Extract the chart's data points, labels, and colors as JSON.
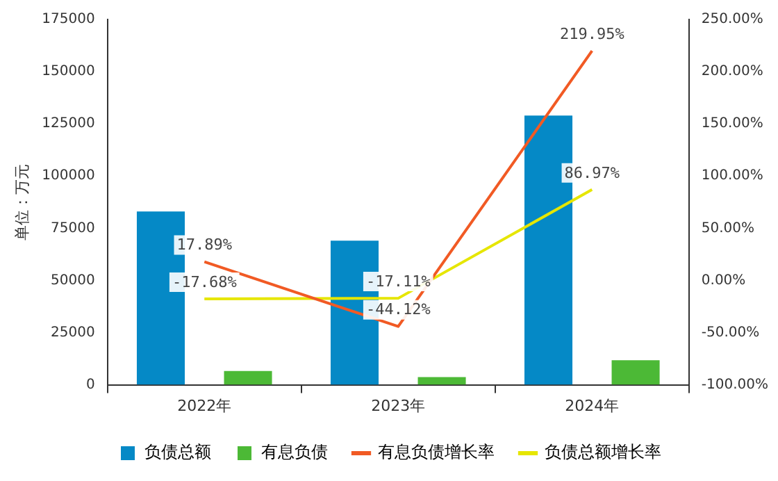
{
  "chart_data": {
    "type": "bar",
    "ylabel": "单位：万元",
    "categories": [
      "2022年",
      "2023年",
      "2024年"
    ],
    "series": [
      {
        "name": "负债总额",
        "color": "#0589c6",
        "values": [
          83000,
          69000,
          129000
        ]
      },
      {
        "name": "有息负债",
        "color": "#4cb936",
        "values": [
          6600,
          3700,
          11800
        ]
      },
      {
        "name": "有息负债增长率",
        "type": "line",
        "axis": "y2",
        "color": "#f15a24",
        "values": [
          17.89,
          -44.12,
          219.95
        ],
        "value_labels": [
          "17.89%",
          "-44.12%",
          "219.95%"
        ]
      },
      {
        "name": "负债总额增长率",
        "type": "line",
        "axis": "y2",
        "color": "#e6e600",
        "values": [
          -17.68,
          -17.11,
          86.97
        ],
        "value_labels": [
          "-17.68%",
          "-17.11%",
          "86.97%"
        ]
      }
    ],
    "ylim": [
      0,
      175000
    ],
    "yticks": [
      0,
      25000,
      50000,
      75000,
      100000,
      125000,
      150000,
      175000
    ],
    "y2lim": [
      -100,
      250
    ],
    "y2ticks": [
      {
        "value": -100,
        "label": "-100.00%"
      },
      {
        "value": -50,
        "label": "-50.00%"
      },
      {
        "value": 0,
        "label": "0.00%"
      },
      {
        "value": 50,
        "label": "50.00%"
      },
      {
        "value": 100,
        "label": "100.00%"
      },
      {
        "value": 150,
        "label": "150.00%"
      },
      {
        "value": 200,
        "label": "200.00%"
      },
      {
        "value": 250,
        "label": "250.00%"
      }
    ],
    "grid": false,
    "legend": "bottom",
    "marker": "none"
  }
}
